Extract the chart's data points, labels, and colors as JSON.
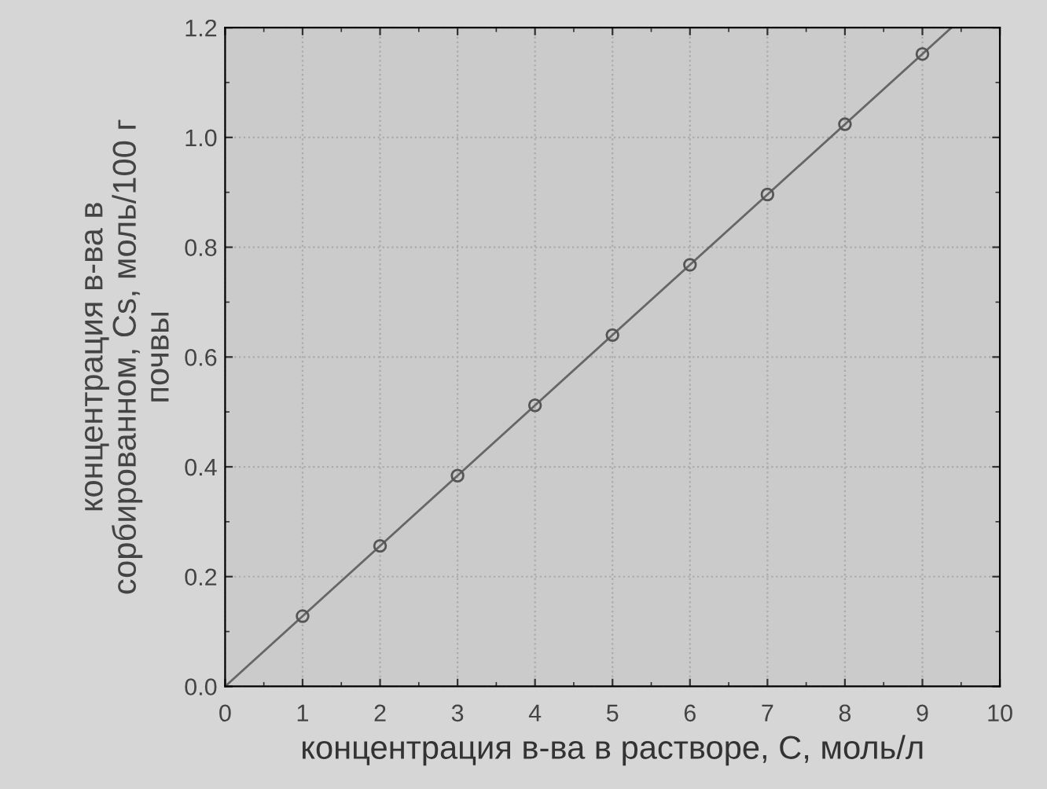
{
  "chart_data": {
    "type": "scatter",
    "xlabel": "концентрация в-ва в растворе, С, моль/л",
    "ylabel": "концентрация в-ва в\nсорбированном, Cs, моль/100 г\nпочвы",
    "series": [
      {
        "color": "#555555",
        "marker": "circle",
        "x": [
          1,
          2,
          3,
          4,
          5,
          6,
          7,
          8,
          9
        ],
        "values": [
          0.128,
          0.256,
          0.384,
          0.512,
          0.64,
          0.768,
          0.896,
          1.024,
          1.152
        ]
      },
      {
        "type": "line",
        "color": "#666666",
        "line_style": "solid",
        "x": [
          0,
          9.375
        ],
        "values": [
          0,
          1.2
        ]
      }
    ],
    "xlim": [
      0,
      10
    ],
    "ylim": [
      0,
      1.2
    ],
    "xticks": [
      0,
      1,
      2,
      3,
      4,
      5,
      6,
      7,
      8,
      9,
      10
    ],
    "yticks": [
      {
        "value": 0,
        "label": "0.0"
      },
      0.2,
      0.4,
      0.6,
      0.8,
      {
        "value": 1.0,
        "label": "1.0"
      },
      1.2
    ],
    "grid": true
  }
}
